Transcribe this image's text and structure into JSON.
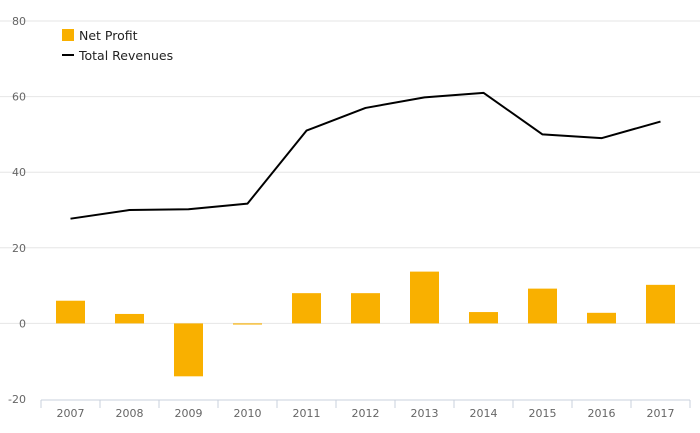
{
  "chart_data": {
    "type": "bar",
    "categories": [
      "2007",
      "2008",
      "2009",
      "2010",
      "2011",
      "2012",
      "2013",
      "2014",
      "2015",
      "2016",
      "2017"
    ],
    "ylim": [
      -20,
      80
    ],
    "yticks": [
      80,
      60,
      40,
      20,
      0,
      -20
    ],
    "grid": true,
    "legend_position": "top-left",
    "series": [
      {
        "name": "Net Profit",
        "kind": "bar",
        "color": "#f9b000",
        "values": [
          6,
          2.5,
          -14,
          -0.3,
          8,
          8,
          13.7,
          3,
          9.2,
          2.8,
          10.2
        ]
      },
      {
        "name": "Total Revenues",
        "kind": "line",
        "color": "#000000",
        "values": [
          27.7,
          30,
          30.2,
          31.7,
          51,
          57,
          59.8,
          61,
          50,
          49,
          53.4
        ]
      }
    ]
  }
}
